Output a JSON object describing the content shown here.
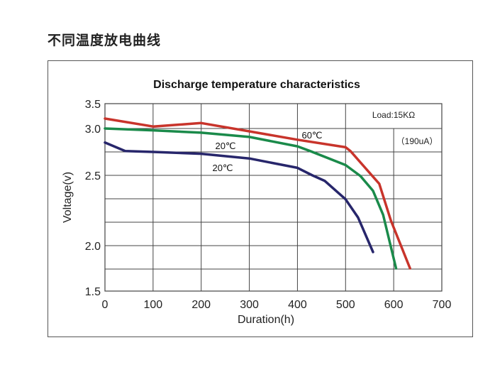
{
  "page_title": "不同温度放电曲线",
  "chart_data": {
    "type": "line",
    "title": "Discharge temperature characteristics",
    "xlabel": "Duration(h)",
    "ylabel": "Voltage(v)",
    "xlim": [
      0,
      700
    ],
    "ylim": [
      1.5,
      3.5
    ],
    "x_ticks": [
      "0",
      "100",
      "200",
      "300",
      "400",
      "500",
      "600",
      "700"
    ],
    "y_ticks": [
      "3.5",
      "3.0",
      "2.5",
      "2.0",
      "1.5"
    ],
    "grid": true,
    "annotations": {
      "load": "Load:15KΩ",
      "current": "（190uA）"
    },
    "series": [
      {
        "name": "60℃",
        "color": "#c8342b",
        "x": [
          0,
          100,
          200,
          300,
          400,
          500,
          510,
          570,
          594,
          634
        ],
        "y": [
          3.2,
          3.04,
          3.11,
          2.97,
          2.88,
          2.8,
          2.76,
          2.44,
          2.18,
          1.75
        ]
      },
      {
        "name": "20℃",
        "color": "#1a8a4a",
        "x": [
          0,
          100,
          200,
          300,
          400,
          426,
          500,
          531,
          557,
          578,
          605
        ],
        "y": [
          3.0,
          2.98,
          2.955,
          2.91,
          2.81,
          2.76,
          2.61,
          2.495,
          2.39,
          2.22,
          1.75
        ]
      },
      {
        "name": "20℃",
        "color": "#27266b",
        "x": [
          0,
          42,
          100,
          200,
          300,
          400,
          431,
          457,
          500,
          526,
          557
        ],
        "y": [
          2.85,
          2.76,
          2.75,
          2.73,
          2.68,
          2.58,
          2.5,
          2.46,
          2.33,
          2.2,
          1.93
        ]
      }
    ]
  }
}
